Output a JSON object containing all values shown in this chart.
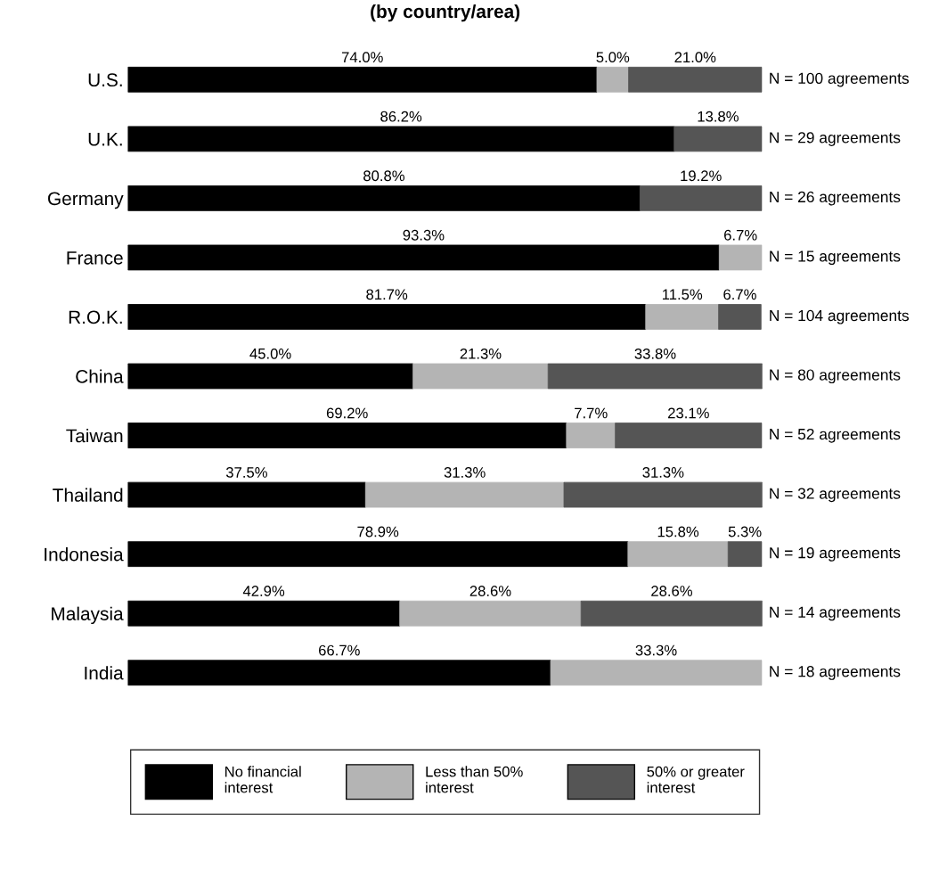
{
  "chart_data": {
    "type": "bar",
    "orientation": "horizontal",
    "stacked": true,
    "title": "(by country/area)",
    "categories": [
      "U.S.",
      "U.K.",
      "Germany",
      "France",
      "R.O.K.",
      "China",
      "Taiwan",
      "Thailand",
      "Indonesia",
      "Malaysia",
      "India"
    ],
    "series": [
      {
        "name": "No financial interest",
        "color": "#000000",
        "values": [
          74.0,
          86.2,
          80.8,
          93.3,
          81.7,
          45.0,
          69.2,
          37.5,
          78.9,
          42.9,
          66.7
        ],
        "value_labels": [
          "74.0%",
          "86.2%",
          "80.8%",
          "93.3%",
          "81.7%",
          "45.0%",
          "69.2%",
          "37.5%",
          "78.9%",
          "42.9%",
          "66.7%"
        ]
      },
      {
        "name": "Less than 50% interest",
        "color": "#b4b4b4",
        "values": [
          5.0,
          null,
          null,
          6.7,
          11.5,
          21.3,
          7.7,
          31.3,
          15.8,
          28.6,
          33.3
        ],
        "value_labels": [
          "5.0%",
          null,
          null,
          "6.7%",
          "11.5%",
          "21.3%",
          "7.7%",
          "31.3%",
          "15.8%",
          "28.6%",
          "33.3%"
        ]
      },
      {
        "name": "50% or greater interest",
        "color": "#555555",
        "values": [
          21.0,
          13.8,
          19.2,
          null,
          6.7,
          33.8,
          23.1,
          31.3,
          5.3,
          28.6,
          null
        ],
        "value_labels": [
          "21.0%",
          "13.8%",
          "19.2%",
          null,
          "6.7%",
          "33.8%",
          "23.1%",
          "31.3%",
          "5.3%",
          "28.6%",
          null
        ]
      }
    ],
    "annotations": [
      "N = 100 agreements",
      "N = 29 agreements",
      "N = 26 agreements",
      "N = 15 agreements",
      "N = 104 agreements",
      "N = 80 agreements",
      "N = 52 agreements",
      "N = 32 agreements",
      "N = 19 agreements",
      "N = 14 agreements",
      "N = 18 agreements"
    ],
    "legend": "bottom",
    "grid": false,
    "tick_labels": "y"
  }
}
